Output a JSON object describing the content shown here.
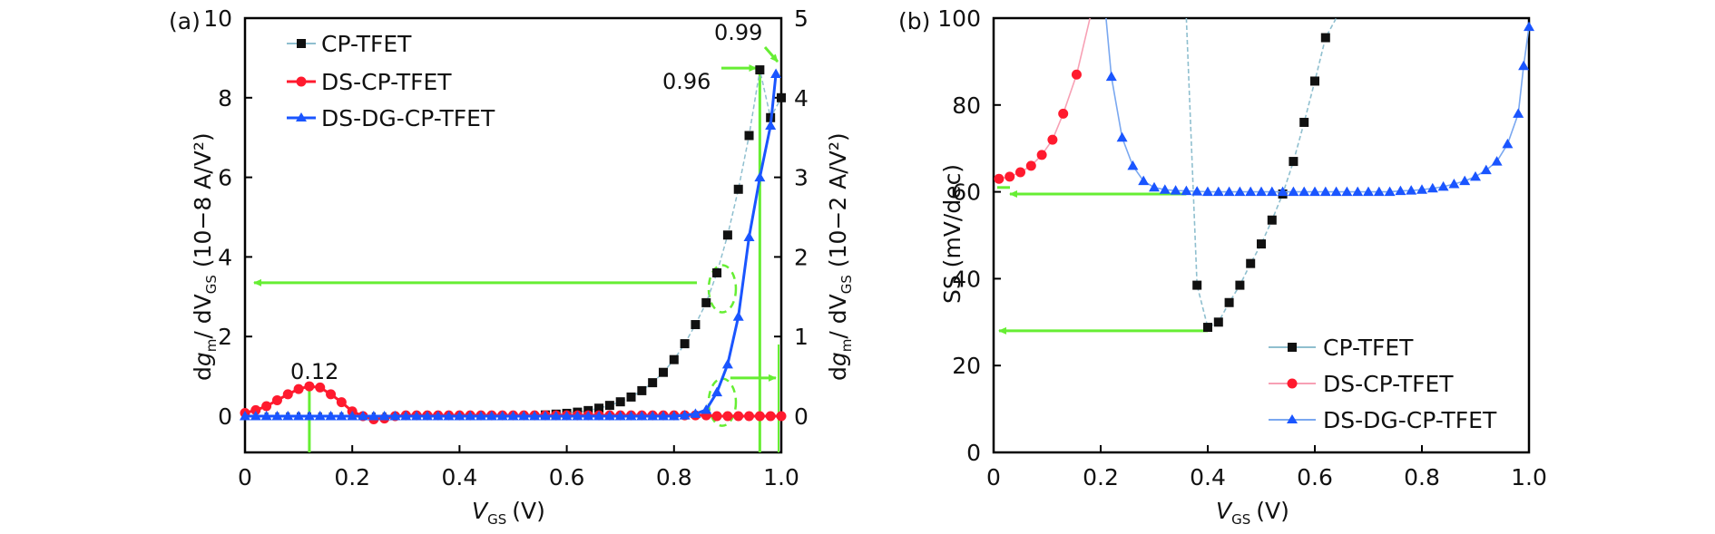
{
  "colors": {
    "cp_tfet": "#111111",
    "cp_tfet_line": "#8fbfcf",
    "ds_cp_tfet": "#ff1a2e",
    "ds_cp_tfet_line": "#f7a0b4",
    "ds_dg_cp_tfet": "#1a55ff",
    "ds_dg_cp_tfet_line": "#7aa8f0",
    "annotation": "#66ee33",
    "axis": "#000000"
  },
  "chart_data": [
    {
      "panel": "(a)",
      "type": "scatter",
      "title": "",
      "xlabel": "V_GS (V)",
      "xlabel_main": "V",
      "xlabel_sub": "GS",
      "xlabel_unit": "(V)",
      "ylabel_left": "dg_m/ dV_GS (10^-8 A/V^2)",
      "ylabel_right": "dg_m/ dV_GS (10^-2 A/V^2)",
      "ylabel_left_parts": {
        "d": "d",
        "g": "g",
        "m": "m",
        "mid": "/ dV",
        "gs": "GS",
        "unit": " (10−8 A/V²)"
      },
      "ylabel_right_parts": {
        "d": "d",
        "g": "g",
        "m": "m",
        "mid": "/ dV",
        "gs": "GS",
        "unit": " (10−2 A/V²)"
      },
      "xlim": [
        0,
        1.0
      ],
      "ylim_left": [
        -1,
        10
      ],
      "ylim_right": [
        -0.5,
        5
      ],
      "x_ticks": [
        "0",
        "0.2",
        "0.4",
        "0.6",
        "0.8",
        "1.0"
      ],
      "x_tick_values": [
        0,
        0.2,
        0.4,
        0.6,
        0.8,
        1.0
      ],
      "y_left_ticks": [
        "0",
        "2",
        "4",
        "6",
        "8",
        "10"
      ],
      "y_left_tick_values": [
        0,
        2,
        4,
        6,
        8,
        10
      ],
      "y_right_ticks": [
        "0",
        "1",
        "2",
        "3",
        "4",
        "5"
      ],
      "y_right_tick_values": [
        0,
        1,
        2,
        3,
        4,
        5
      ],
      "grid": false,
      "legend_position": "top-left",
      "legend": [
        "CP-TFET",
        "DS-CP-TFET",
        "DS-DG-CP-TFET"
      ],
      "annotations": [
        {
          "text": "0.12",
          "x": 0.12
        },
        {
          "text": "0.96",
          "x": 0.96
        },
        {
          "text": "0.99",
          "x": 0.99
        }
      ],
      "series": [
        {
          "name": "CP-TFET",
          "axis": "left",
          "marker": "square",
          "x": [
            0.0,
            0.02,
            0.04,
            0.06,
            0.08,
            0.1,
            0.12,
            0.14,
            0.16,
            0.18,
            0.2,
            0.22,
            0.24,
            0.26,
            0.28,
            0.3,
            0.32,
            0.34,
            0.36,
            0.38,
            0.4,
            0.42,
            0.44,
            0.46,
            0.48,
            0.5,
            0.52,
            0.54,
            0.56,
            0.58,
            0.6,
            0.62,
            0.64,
            0.66,
            0.68,
            0.7,
            0.72,
            0.74,
            0.76,
            0.78,
            0.8,
            0.82,
            0.84,
            0.86,
            0.88,
            0.9,
            0.92,
            0.94,
            0.96,
            0.98,
            1.0
          ],
          "y": [
            0,
            0,
            0,
            0,
            0,
            0,
            0,
            0,
            0,
            0,
            0,
            0,
            0,
            0,
            0,
            0,
            0,
            0,
            0,
            0,
            0,
            0,
            0,
            0,
            0,
            0,
            0.01,
            0.02,
            0.03,
            0.05,
            0.07,
            0.1,
            0.14,
            0.2,
            0.27,
            0.36,
            0.48,
            0.64,
            0.84,
            1.1,
            1.42,
            1.82,
            2.3,
            2.85,
            3.6,
            4.55,
            5.7,
            7.05,
            8.7,
            7.5,
            8.0
          ]
        },
        {
          "name": "DS-CP-TFET",
          "axis": "left",
          "marker": "circle",
          "x": [
            0.0,
            0.02,
            0.04,
            0.06,
            0.08,
            0.1,
            0.12,
            0.14,
            0.16,
            0.18,
            0.2,
            0.22,
            0.24,
            0.26,
            0.28,
            0.3,
            0.32,
            0.34,
            0.36,
            0.38,
            0.4,
            0.42,
            0.44,
            0.46,
            0.48,
            0.5,
            0.52,
            0.54,
            0.56,
            0.58,
            0.6,
            0.62,
            0.64,
            0.66,
            0.68,
            0.7,
            0.72,
            0.74,
            0.76,
            0.78,
            0.8,
            0.82,
            0.84,
            0.86,
            0.88,
            0.9,
            0.92,
            0.94,
            0.96,
            0.98,
            1.0
          ],
          "y": [
            0.08,
            0.15,
            0.25,
            0.4,
            0.55,
            0.68,
            0.75,
            0.72,
            0.55,
            0.35,
            0.12,
            0.0,
            -0.08,
            -0.06,
            0.0,
            0.02,
            0.02,
            0.02,
            0.02,
            0.02,
            0.02,
            0.02,
            0.02,
            0.02,
            0.02,
            0.02,
            0.02,
            0.02,
            0.02,
            0.02,
            0.02,
            0.02,
            0.02,
            0.02,
            0.02,
            0.02,
            0.02,
            0.02,
            0.02,
            0.02,
            0.02,
            0.02,
            0.02,
            0.02,
            0.0,
            0.0,
            0.0,
            0.0,
            0.0,
            0.0,
            0.0
          ]
        },
        {
          "name": "DS-DG-CP-TFET",
          "axis": "right",
          "marker": "triangle",
          "x": [
            0.0,
            0.02,
            0.04,
            0.06,
            0.08,
            0.1,
            0.12,
            0.14,
            0.16,
            0.18,
            0.2,
            0.22,
            0.24,
            0.26,
            0.28,
            0.3,
            0.32,
            0.34,
            0.36,
            0.38,
            0.4,
            0.42,
            0.44,
            0.46,
            0.48,
            0.5,
            0.52,
            0.54,
            0.56,
            0.58,
            0.6,
            0.62,
            0.64,
            0.66,
            0.68,
            0.7,
            0.72,
            0.74,
            0.76,
            0.78,
            0.8,
            0.82,
            0.84,
            0.86,
            0.88,
            0.9,
            0.92,
            0.94,
            0.96,
            0.98,
            0.99
          ],
          "y": [
            0,
            0,
            0,
            0,
            0,
            0,
            0,
            0,
            0,
            0,
            0,
            0,
            0,
            0,
            0,
            0,
            0,
            0,
            0,
            0,
            0,
            0,
            0,
            0,
            0,
            0,
            0,
            0,
            0,
            0,
            0,
            0,
            0,
            0,
            0,
            0,
            0,
            0,
            0,
            0,
            0,
            0.01,
            0.03,
            0.08,
            0.3,
            0.65,
            1.25,
            2.25,
            3.0,
            3.65,
            4.3
          ]
        }
      ]
    },
    {
      "panel": "(b)",
      "type": "scatter",
      "title": "",
      "xlabel": "V_GS (V)",
      "xlabel_main": "V",
      "xlabel_sub": "GS",
      "xlabel_unit": "(V)",
      "ylabel": "SS (mV/dec)",
      "xlim": [
        0,
        1.0
      ],
      "ylim": [
        0,
        100
      ],
      "x_ticks": [
        "0",
        "0.2",
        "0.4",
        "0.6",
        "0.8",
        "1.0"
      ],
      "x_tick_values": [
        0,
        0.2,
        0.4,
        0.6,
        0.8,
        1.0
      ],
      "y_ticks": [
        "0",
        "20",
        "40",
        "60",
        "80",
        "100"
      ],
      "y_tick_values": [
        0,
        20,
        40,
        60,
        80,
        100
      ],
      "grid": false,
      "legend_position": "bottom-right",
      "legend": [
        "CP-TFET",
        "DS-CP-TFET",
        "DS-DG-CP-TFET"
      ],
      "annotations": [
        {
          "text": "arrow to 60 mV/dec",
          "y": 60
        },
        {
          "text": "arrow to ~28 mV/dec",
          "y": 28
        }
      ],
      "series": [
        {
          "name": "CP-TFET",
          "marker": "square",
          "x": [
            0.36,
            0.38,
            0.4,
            0.42,
            0.44,
            0.46,
            0.48,
            0.5,
            0.52,
            0.54,
            0.56,
            0.58,
            0.6,
            0.62,
            0.64
          ],
          "y": [
            100,
            38.5,
            28.8,
            30,
            34.5,
            38.5,
            43.5,
            48,
            53.5,
            59.5,
            67,
            76,
            85.5,
            95.5,
            104
          ],
          "marker_from_index": 1
        },
        {
          "name": "DS-CP-TFET",
          "marker": "circle",
          "x": [
            0.01,
            0.03,
            0.05,
            0.07,
            0.09,
            0.11,
            0.13,
            0.155,
            0.18
          ],
          "y": [
            63,
            63.5,
            64.5,
            66,
            68.5,
            72,
            78,
            87,
            104
          ]
        },
        {
          "name": "DS-DG-CP-TFET",
          "marker": "triangle",
          "x": [
            0.21,
            0.22,
            0.24,
            0.26,
            0.28,
            0.3,
            0.32,
            0.34,
            0.36,
            0.38,
            0.4,
            0.42,
            0.44,
            0.46,
            0.48,
            0.5,
            0.52,
            0.54,
            0.56,
            0.58,
            0.6,
            0.62,
            0.64,
            0.66,
            0.68,
            0.7,
            0.72,
            0.74,
            0.76,
            0.78,
            0.8,
            0.82,
            0.84,
            0.86,
            0.88,
            0.9,
            0.92,
            0.94,
            0.96,
            0.98,
            0.99,
            1.0
          ],
          "y": [
            104,
            86.5,
            72.5,
            66,
            62.5,
            61,
            60.5,
            60.3,
            60.2,
            60.1,
            60,
            60,
            60,
            60,
            60,
            60,
            60,
            60,
            60,
            60,
            60,
            60,
            60,
            60,
            60,
            60,
            60,
            60,
            60.2,
            60.3,
            60.5,
            60.8,
            61.2,
            61.8,
            62.5,
            63.5,
            65,
            67,
            71,
            78,
            89,
            98
          ]
        }
      ]
    }
  ],
  "panel_labels": {
    "a": "(a)",
    "b": "(b)"
  }
}
